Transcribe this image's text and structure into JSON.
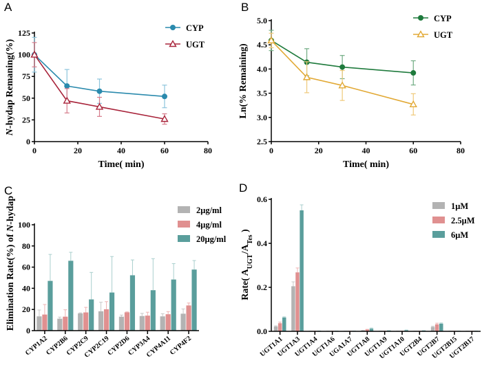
{
  "chart_data": [
    {
      "panel": "A",
      "type": "line",
      "title": "",
      "xlabel": "Time( min)",
      "ylabel_italic": "N",
      "ylabel": "-hydap Remaning(%)",
      "xlim": [
        0,
        80
      ],
      "ylim": [
        0,
        125
      ],
      "xticks": [
        0,
        20,
        40,
        60,
        80
      ],
      "yticks": [
        0,
        25,
        50,
        75,
        100,
        125
      ],
      "legend_position": "top-right",
      "x": [
        0,
        15,
        30,
        60
      ],
      "series": [
        {
          "name": "CYP",
          "marker": "circle-filled",
          "color": "#2a8aad",
          "errcolor": "#8cc4dc",
          "values": [
            100,
            64,
            58,
            52
          ],
          "errors": [
            20,
            19,
            14,
            13
          ]
        },
        {
          "name": "UGT",
          "marker": "triangle-open",
          "color": "#a8233a",
          "errcolor": "#d67a8a",
          "values": [
            100,
            47,
            40,
            26
          ],
          "errors": [
            14,
            14,
            11,
            6
          ]
        }
      ]
    },
    {
      "panel": "B",
      "type": "line",
      "title": "",
      "xlabel": "Time( min)",
      "ylabel": "Ln(% Remaining)",
      "xlim": [
        0,
        80
      ],
      "ylim": [
        2.5,
        5.0
      ],
      "xticks": [
        0,
        20,
        40,
        60,
        80
      ],
      "yticks": [
        2.5,
        3.0,
        3.5,
        4.0,
        4.5,
        5.0
      ],
      "ytick_labels": [
        "2.5",
        "3.0",
        "3.5",
        "4.0",
        "4.5",
        "5.0"
      ],
      "legend_position": "top-right",
      "x": [
        0,
        15,
        30,
        60
      ],
      "series": [
        {
          "name": "CYP",
          "marker": "circle-filled",
          "color": "#1e7a3c",
          "errcolor": "#6fab82",
          "values": [
            4.59,
            4.14,
            4.04,
            3.92
          ],
          "errors": [
            0.21,
            0.28,
            0.24,
            0.25
          ]
        },
        {
          "name": "UGT",
          "marker": "triangle-open",
          "color": "#e2a935",
          "errcolor": "#efc979",
          "values": [
            4.59,
            3.83,
            3.66,
            3.27
          ],
          "errors": [
            0.15,
            0.32,
            0.31,
            0.22
          ]
        }
      ]
    },
    {
      "panel": "C",
      "type": "bar",
      "title": "",
      "xlabel": "",
      "ylabel_prefix": "Elimination Rate(%) of ",
      "ylabel_italic": "N",
      "ylabel_suffix": "-hydap",
      "ylim": [
        0,
        100
      ],
      "yticks": [
        0,
        20,
        40,
        60,
        80,
        100
      ],
      "legend_position": "top-right",
      "categories": [
        "CYP1A2",
        "CYP2B6",
        "CYP2C9",
        "CYP2C19",
        "CYP2D6",
        "CYP3A4",
        "CYP4A11",
        "CYP4F2"
      ],
      "series": [
        {
          "name": "2μg/ml",
          "color": "#b3b3b3",
          "errcolor": "#c8c8c8",
          "values": [
            13.5,
            11.3,
            16.3,
            18.3,
            13.2,
            13.8,
            13.5,
            16.0
          ],
          "errors": [
            6,
            1.5,
            0.5,
            8.5,
            1.5,
            2.5,
            2.5,
            4.5
          ]
        },
        {
          "name": "4μg/ml",
          "color": "#e09090",
          "errcolor": "#eeb3b3",
          "values": [
            15.2,
            13.2,
            17.2,
            20.2,
            17.3,
            14.2,
            15.5,
            23.8
          ],
          "errors": [
            9.5,
            6.5,
            4.8,
            7.2,
            0.4,
            3.2,
            2.5,
            2.3
          ]
        },
        {
          "name": "20μg/ml",
          "color": "#5a9e9c",
          "errcolor": "#a9cfcd",
          "values": [
            47,
            66,
            29.5,
            36,
            52.3,
            38.2,
            48.3,
            57.7
          ],
          "errors": [
            25,
            8,
            25.5,
            34,
            14.5,
            29.8,
            15,
            8.5
          ]
        }
      ]
    },
    {
      "panel": "D",
      "type": "bar",
      "title": "",
      "xlabel": "",
      "ylabel_prefix": "Rate( A",
      "ylabel_sub1": "UGT",
      "ylabel_mid": "/A",
      "ylabel_sub2": "Tes",
      "ylabel_suffix": " )",
      "ylim": [
        0,
        0.6
      ],
      "yticks": [
        0.0,
        0.2,
        0.4,
        0.6
      ],
      "ytick_labels": [
        "0.0",
        "0.2",
        "0.4",
        "0.6"
      ],
      "legend_position": "top-right",
      "categories": [
        "UGT1A1",
        "UGT1A3",
        "UGT1A4",
        "UGT1A6",
        "UGA1A7",
        "UGT1A8",
        "UGT1A9",
        "UGT1A10",
        "UGT2B4",
        "UGT2B7",
        "UGT2B15",
        "UGT2B17"
      ],
      "series": [
        {
          "name": "1μM",
          "color": "#b3b3b3",
          "errcolor": "#c8c8c8",
          "values": [
            0.022,
            0.205,
            0.001,
            0.001,
            0.001,
            0.004,
            0.001,
            0.001,
            0.001,
            0.02,
            0.001,
            0.001
          ],
          "errors": [
            0.003,
            0.02,
            0,
            0,
            0,
            0.001,
            0,
            0,
            0,
            0.003,
            0,
            0
          ]
        },
        {
          "name": "2.5μM",
          "color": "#e09090",
          "errcolor": "#eeb3b3",
          "values": [
            0.037,
            0.268,
            0.002,
            0.002,
            0.001,
            0.008,
            0.002,
            0.002,
            0.002,
            0.032,
            0.002,
            0.002
          ],
          "errors": [
            0.005,
            0.02,
            0,
            0,
            0,
            0.001,
            0,
            0,
            0,
            0.005,
            0,
            0
          ]
        },
        {
          "name": "6μM",
          "color": "#5a9e9c",
          "errcolor": "#a9cfcd",
          "values": [
            0.063,
            0.55,
            0.003,
            0.002,
            0.001,
            0.012,
            0.004,
            0.005,
            0.004,
            0.035,
            0.002,
            0.002
          ],
          "errors": [
            0.003,
            0.025,
            0,
            0,
            0,
            0.003,
            0,
            0.001,
            0,
            0.003,
            0,
            0
          ]
        }
      ]
    }
  ],
  "panels": {
    "A": {
      "letter": "A"
    },
    "B": {
      "letter": "B"
    },
    "C": {
      "letter": "C"
    },
    "D": {
      "letter": "D"
    }
  }
}
